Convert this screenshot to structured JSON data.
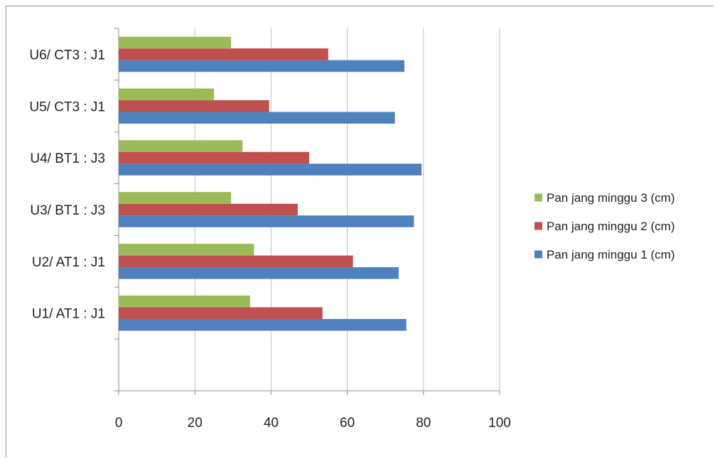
{
  "chart_data": {
    "type": "bar",
    "orientation": "horizontal",
    "categories": [
      "U1/ AT1 : J1",
      "U2/ AT1 : J1",
      "U3/ BT1 : J3",
      "U4/ BT1 : J3",
      "U5/ CT3 : J1",
      "U6/ CT3 : J1"
    ],
    "series": [
      {
        "name": "Pan jang minggu 1 (cm)",
        "color": "#4f81bd",
        "values": [
          75.5,
          73.5,
          77.5,
          79.5,
          72.5,
          75
        ]
      },
      {
        "name": "Pan jang minggu 2 (cm)",
        "color": "#c0504d",
        "values": [
          53.5,
          61.5,
          47,
          50,
          39.5,
          55
        ]
      },
      {
        "name": "Pan jang minggu 3 (cm)",
        "color": "#9bbb59",
        "values": [
          34.5,
          35.5,
          29.5,
          32.5,
          25,
          29.5
        ]
      }
    ],
    "x_ticks": [
      "0",
      "20",
      "40",
      "60",
      "80",
      "100"
    ],
    "xlim": [
      0,
      100
    ],
    "legend_order": [
      "Pan jang minggu 3 (cm)",
      "Pan jang minggu 2 (cm)",
      "Pan jang minggu 1 (cm)"
    ],
    "legend_position": "right",
    "grid": "vertical",
    "title": "",
    "xlabel": "",
    "ylabel": ""
  }
}
